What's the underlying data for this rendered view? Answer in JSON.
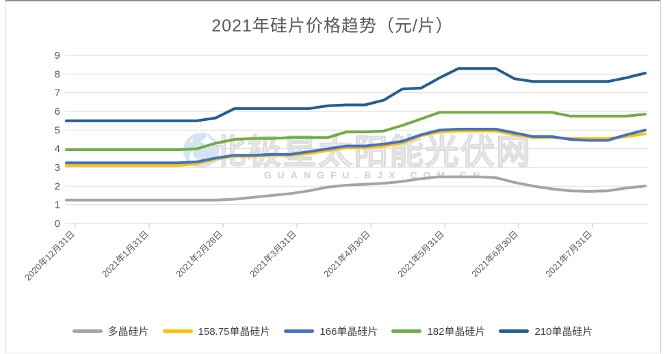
{
  "watermark": {
    "logo_icon": "polaris-star-logo",
    "text": "北极星太阳能光伏网",
    "subtext": "GUANGFU.BJX.COM.CN"
  },
  "chart_data": {
    "type": "line",
    "title": "2021年硅片价格趋势（元/片）",
    "unit": "元/片",
    "x_tick_labels": [
      "2020年12月31日",
      "2021年1月31日",
      "2021年2月28日",
      "2021年3月31日",
      "2021年4月30日",
      "2021年5月31日",
      "2021年6月30日",
      "2021年7月31日"
    ],
    "y_ticks": [
      0,
      1,
      2,
      3,
      4,
      5,
      6,
      7,
      8,
      9
    ],
    "ylim": [
      0,
      9
    ],
    "grid": true,
    "grid_color": "#d9d9d9",
    "axis_color": "#bfbfbf",
    "label_color": "#595959",
    "legend_position": "bottom",
    "series": [
      {
        "name": "多晶硅片",
        "color": "#A5A5A5",
        "values": [
          1.25,
          1.25,
          1.25,
          1.25,
          1.25,
          1.25,
          1.25,
          1.25,
          1.25,
          1.3,
          1.4,
          1.5,
          1.6,
          1.75,
          1.95,
          2.05,
          2.1,
          2.15,
          2.25,
          2.4,
          2.5,
          2.5,
          2.5,
          2.45,
          2.2,
          2.0,
          1.85,
          1.75,
          1.72,
          1.75,
          1.9,
          2.0
        ]
      },
      {
        "name": "158.75单晶硅片",
        "color": "#FFC000",
        "values": [
          3.1,
          3.1,
          3.1,
          3.1,
          3.1,
          3.1,
          3.1,
          3.2,
          3.45,
          3.6,
          3.6,
          3.65,
          3.65,
          3.75,
          3.9,
          4.05,
          4.05,
          4.15,
          4.3,
          4.7,
          4.9,
          4.95,
          4.95,
          4.95,
          4.75,
          4.6,
          4.6,
          4.55,
          4.55,
          4.55,
          4.65,
          4.8
        ]
      },
      {
        "name": "166单晶硅片",
        "color": "#4472C4",
        "values": [
          3.25,
          3.25,
          3.25,
          3.25,
          3.25,
          3.25,
          3.25,
          3.3,
          3.5,
          3.65,
          3.65,
          3.7,
          3.7,
          3.85,
          4.0,
          4.15,
          4.15,
          4.25,
          4.4,
          4.75,
          5.0,
          5.05,
          5.05,
          5.05,
          4.85,
          4.65,
          4.65,
          4.5,
          4.45,
          4.45,
          4.75,
          5.0
        ]
      },
      {
        "name": "182单晶硅片",
        "color": "#70AD47",
        "values": [
          3.95,
          3.95,
          3.95,
          3.95,
          3.95,
          3.95,
          3.95,
          4.0,
          4.3,
          4.5,
          4.55,
          4.55,
          4.6,
          4.6,
          4.6,
          4.9,
          4.9,
          4.95,
          5.25,
          5.6,
          5.95,
          5.95,
          5.95,
          5.95,
          5.95,
          5.95,
          5.95,
          5.75,
          5.75,
          5.75,
          5.75,
          5.85
        ]
      },
      {
        "name": "210单晶硅片",
        "color": "#255E91",
        "values": [
          5.5,
          5.5,
          5.5,
          5.5,
          5.5,
          5.5,
          5.5,
          5.5,
          5.65,
          6.15,
          6.15,
          6.15,
          6.15,
          6.15,
          6.3,
          6.35,
          6.35,
          6.6,
          7.2,
          7.25,
          7.8,
          8.3,
          8.3,
          8.3,
          7.75,
          7.6,
          7.6,
          7.6,
          7.6,
          7.6,
          7.8,
          8.05
        ]
      }
    ]
  }
}
